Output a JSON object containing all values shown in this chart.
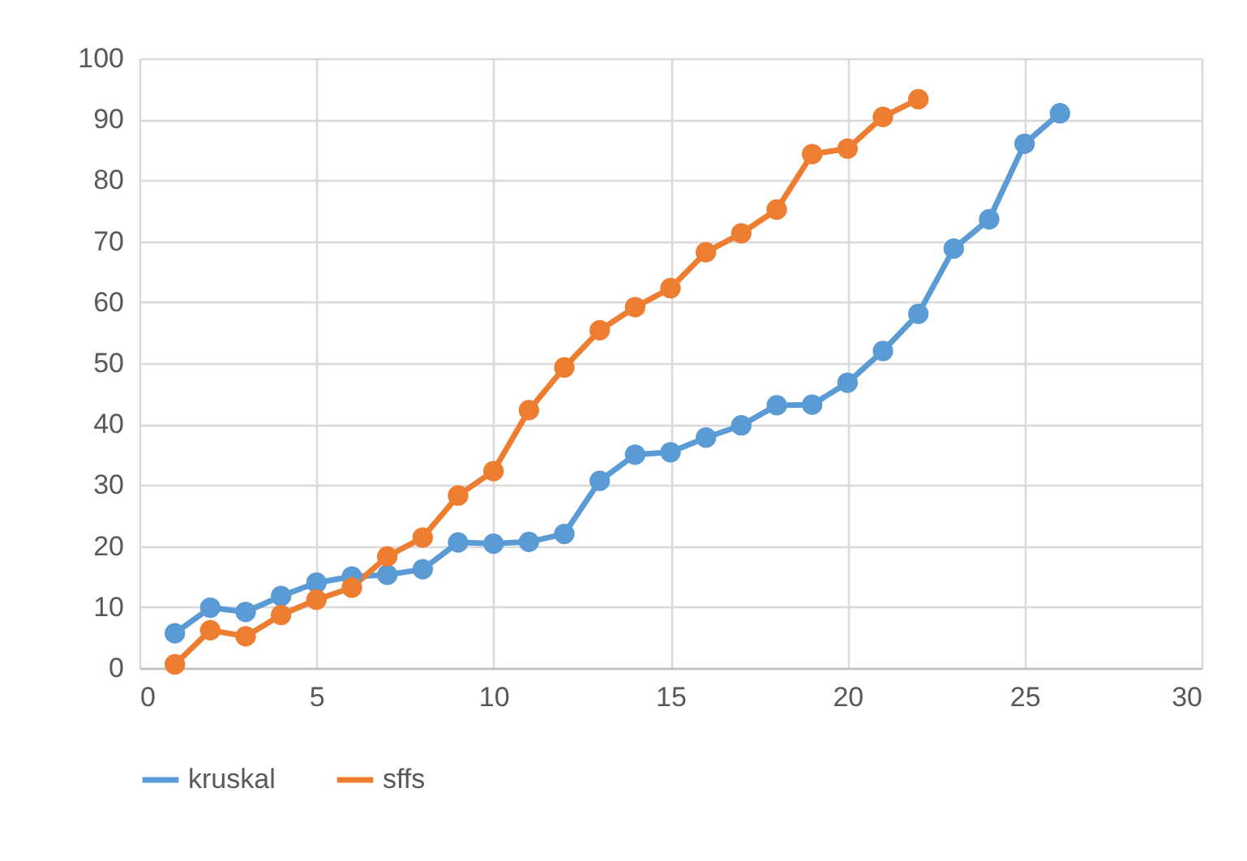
{
  "chart_data": {
    "type": "line",
    "marker": "circle",
    "grid": true,
    "legend": "bottom",
    "xlim": [
      0,
      30
    ],
    "xticks": [
      0,
      5,
      10,
      15,
      20,
      25,
      30
    ],
    "ylim": [
      0,
      100
    ],
    "yticks": [
      0,
      10,
      20,
      30,
      40,
      50,
      60,
      70,
      80,
      90,
      100
    ],
    "series": [
      {
        "name": "kruskal",
        "color": "#5b9bd5",
        "x": [
          1,
          2,
          3,
          4,
          5,
          6,
          7,
          8,
          9,
          10,
          11,
          12,
          13,
          14,
          15,
          16,
          17,
          18,
          19,
          20,
          21,
          22,
          23,
          24,
          25,
          26
        ],
        "values": [
          5.7,
          9.9,
          9.2,
          11.8,
          14,
          15,
          15.3,
          16.2,
          20.6,
          20.4,
          20.7,
          22,
          30.7,
          35,
          35.4,
          37.8,
          39.8,
          43.1,
          43.2,
          46.8,
          52,
          58.1,
          68.8,
          73.6,
          86,
          91
        ]
      },
      {
        "name": "sffs",
        "color": "#ed7d31",
        "x": [
          1,
          2,
          3,
          4,
          5,
          6,
          7,
          8,
          9,
          10,
          11,
          12,
          13,
          14,
          15,
          16,
          17,
          18,
          19,
          20,
          21,
          22
        ],
        "values": [
          0.6,
          6.2,
          5.2,
          8.7,
          11.2,
          13.2,
          18.3,
          21.4,
          28.3,
          32.3,
          42.3,
          49.3,
          55.4,
          59.2,
          62.3,
          68.2,
          71.3,
          75.2,
          84.3,
          85.2,
          90.4,
          93.3
        ]
      }
    ]
  }
}
